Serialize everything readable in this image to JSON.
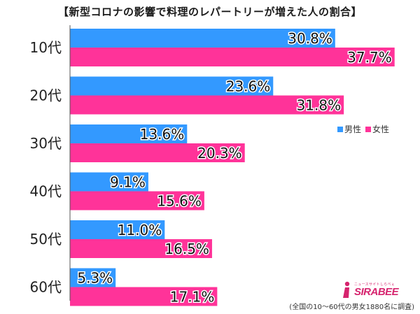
{
  "title": "【新型コロナの影響で料理のレパートリーが増えた人の割合】",
  "chart_data": {
    "type": "bar",
    "orientation": "horizontal",
    "categories": [
      "10代",
      "20代",
      "30代",
      "40代",
      "50代",
      "60代"
    ],
    "series": [
      {
        "name": "男性",
        "color": "#3399ff",
        "values": [
          30.8,
          23.6,
          13.6,
          9.1,
          11.0,
          5.3
        ]
      },
      {
        "name": "女性",
        "color": "#ff3399",
        "values": [
          37.7,
          31.8,
          20.3,
          15.6,
          16.5,
          17.1
        ]
      }
    ],
    "value_labels": {
      "男性": [
        "30.8%",
        "23.6%",
        "13.6%",
        "9.1%",
        "11.0%",
        "5.3%"
      ],
      "女性": [
        "37.7%",
        "31.8%",
        "20.3%",
        "15.6%",
        "16.5%",
        "17.1%"
      ]
    },
    "xlim": [
      0,
      40
    ],
    "grid": false,
    "legend_position": "right"
  },
  "legend": {
    "male": "男性",
    "female": "女性",
    "male_color": "#3399ff",
    "female_color": "#ff3399"
  },
  "logo": {
    "tagline": "ニュースサイトしらべぇ",
    "name": "SIRABEE"
  },
  "footnote": "(全国の10～60代の男女1880名に調査)"
}
